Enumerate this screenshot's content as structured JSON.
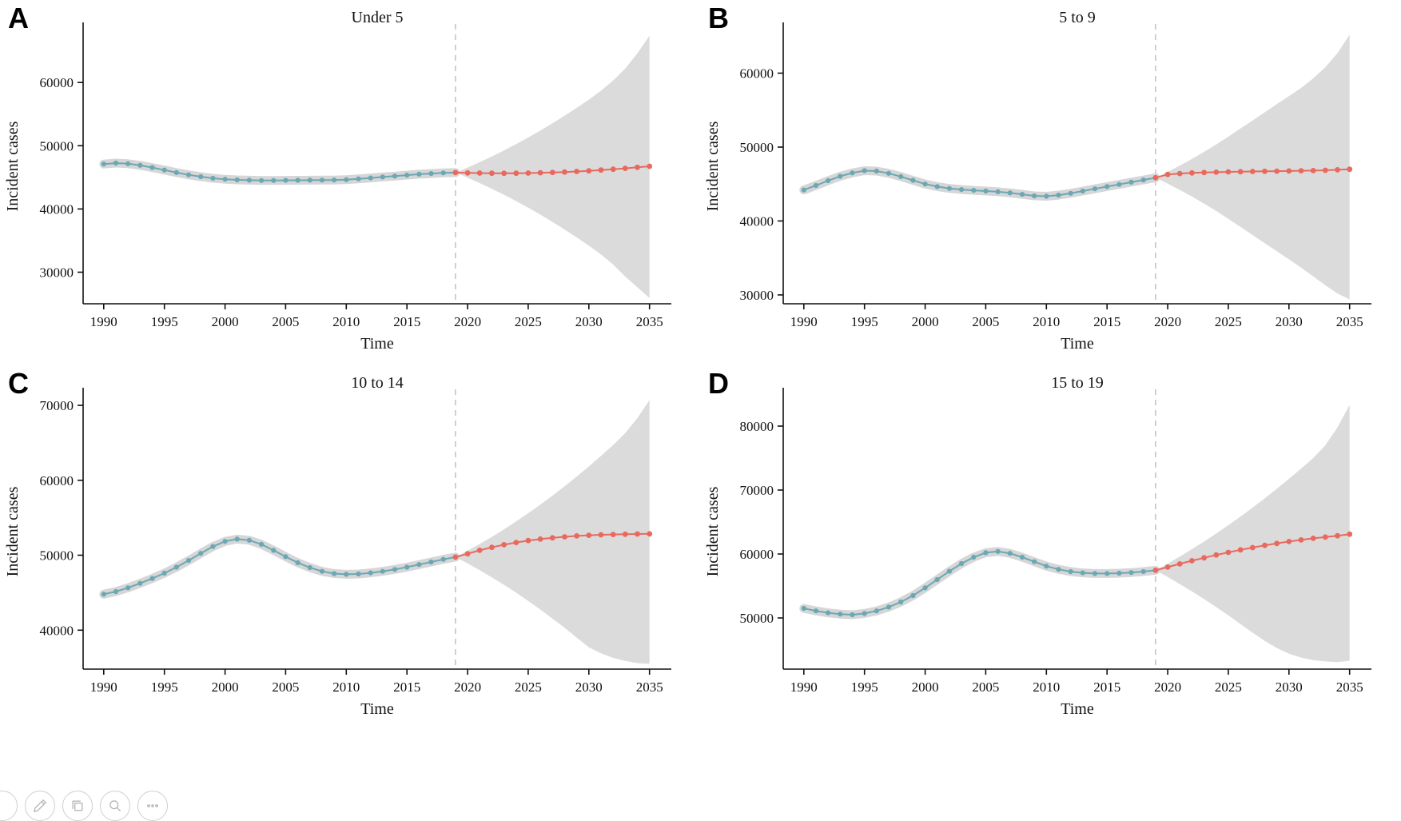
{
  "style": {
    "observed_color": "#6BA8B4",
    "forecast_color": "#E8695E",
    "ci_color": "#DBDBDB",
    "ribbon_color": "#D6D6D6",
    "dashed_color": "#C4C4C4",
    "axis_color": "#111111"
  },
  "toolbar": {
    "icons": [
      {
        "name": "cropped-button"
      },
      {
        "name": "edit-button"
      },
      {
        "name": "copy-button"
      },
      {
        "name": "zoom-button"
      },
      {
        "name": "more-button"
      }
    ]
  },
  "chart_data": [
    {
      "panel_label": "A",
      "type": "line",
      "title": "Under 5",
      "xlabel": "Time",
      "ylabel": "Incident cases",
      "xlim": [
        1988.3,
        2036.8
      ],
      "ylim": [
        25000,
        68500
      ],
      "xticks": [
        1990,
        1995,
        2000,
        2005,
        2010,
        2015,
        2020,
        2025,
        2030,
        2035
      ],
      "yticks": [
        30000,
        40000,
        50000,
        60000
      ],
      "forecast_start": 2019,
      "series": [
        {
          "name": "observed",
          "x": [
            1990,
            1991,
            1992,
            1993,
            1994,
            1995,
            1996,
            1997,
            1998,
            1999,
            2000,
            2001,
            2002,
            2003,
            2004,
            2005,
            2006,
            2007,
            2008,
            2009,
            2010,
            2011,
            2012,
            2013,
            2014,
            2015,
            2016,
            2017,
            2018,
            2019
          ],
          "values": [
            47100,
            47250,
            47150,
            46900,
            46550,
            46150,
            45750,
            45400,
            45100,
            44850,
            44700,
            44600,
            44550,
            44500,
            44500,
            44520,
            44540,
            44550,
            44560,
            44570,
            44620,
            44750,
            44900,
            45050,
            45200,
            45350,
            45500,
            45600,
            45700,
            45750
          ]
        },
        {
          "name": "forecast",
          "x": [
            2019,
            2020,
            2021,
            2022,
            2023,
            2024,
            2025,
            2026,
            2027,
            2028,
            2029,
            2030,
            2031,
            2032,
            2033,
            2034,
            2035
          ],
          "values": [
            45750,
            45700,
            45670,
            45650,
            45640,
            45650,
            45680,
            45720,
            45770,
            45840,
            45930,
            46030,
            46150,
            46280,
            46420,
            46580,
            46750
          ]
        }
      ],
      "ci": {
        "x": [
          2019,
          2020,
          2021,
          2022,
          2023,
          2024,
          2025,
          2026,
          2027,
          2028,
          2029,
          2030,
          2031,
          2032,
          2033,
          2034,
          2035
        ],
        "lower": [
          45750,
          44950,
          44100,
          43200,
          42250,
          41250,
          40200,
          39100,
          37950,
          36750,
          35500,
          34200,
          32800,
          31200,
          29300,
          27600,
          25900
        ],
        "upper": [
          45750,
          46550,
          47400,
          48300,
          49250,
          50250,
          51300,
          52400,
          53550,
          54750,
          56000,
          57300,
          58700,
          60300,
          62200,
          64600,
          67400
        ]
      }
    },
    {
      "panel_label": "B",
      "type": "line",
      "title": "5 to 9",
      "xlabel": "Time",
      "ylabel": "Incident cases",
      "xlim": [
        1988.3,
        2036.8
      ],
      "ylim": [
        28800,
        66000
      ],
      "xticks": [
        1990,
        1995,
        2000,
        2005,
        2010,
        2015,
        2020,
        2025,
        2030,
        2035
      ],
      "yticks": [
        30000,
        40000,
        50000,
        60000
      ],
      "forecast_start": 2019,
      "series": [
        {
          "name": "observed",
          "x": [
            1990,
            1991,
            1992,
            1993,
            1994,
            1995,
            1996,
            1997,
            1998,
            1999,
            2000,
            2001,
            2002,
            2003,
            2004,
            2005,
            2006,
            2007,
            2008,
            2009,
            2010,
            2011,
            2012,
            2013,
            2014,
            2015,
            2016,
            2017,
            2018,
            2019
          ],
          "values": [
            44200,
            44800,
            45450,
            46050,
            46500,
            46800,
            46750,
            46450,
            46000,
            45500,
            45000,
            44650,
            44400,
            44250,
            44150,
            44050,
            43950,
            43800,
            43600,
            43400,
            43350,
            43500,
            43750,
            44050,
            44350,
            44650,
            44950,
            45250,
            45550,
            45850
          ]
        },
        {
          "name": "forecast",
          "x": [
            2019,
            2020,
            2021,
            2022,
            2023,
            2024,
            2025,
            2026,
            2027,
            2028,
            2029,
            2030,
            2031,
            2032,
            2033,
            2034,
            2035
          ],
          "values": [
            45850,
            46300,
            46420,
            46500,
            46560,
            46600,
            46640,
            46670,
            46700,
            46720,
            46740,
            46760,
            46790,
            46820,
            46860,
            46920,
            47000
          ]
        }
      ],
      "ci": {
        "x": [
          2019,
          2020,
          2021,
          2022,
          2023,
          2024,
          2025,
          2026,
          2027,
          2028,
          2029,
          2030,
          2031,
          2032,
          2033,
          2034,
          2035
        ],
        "lower": [
          45850,
          45050,
          44200,
          43300,
          42350,
          41350,
          40300,
          39200,
          38100,
          37000,
          35900,
          34800,
          33700,
          32500,
          31300,
          30200,
          29400
        ],
        "upper": [
          45850,
          46650,
          47500,
          48400,
          49350,
          50350,
          51400,
          52500,
          53600,
          54700,
          55800,
          56900,
          58000,
          59300,
          60800,
          62700,
          65200
        ]
      }
    },
    {
      "panel_label": "C",
      "type": "line",
      "title": "10 to 14",
      "xlabel": "Time",
      "ylabel": "Incident cases",
      "xlim": [
        1988.3,
        2036.8
      ],
      "ylim": [
        34800,
        71500
      ],
      "xticks": [
        1990,
        1995,
        2000,
        2005,
        2010,
        2015,
        2020,
        2025,
        2030,
        2035
      ],
      "yticks": [
        40000,
        50000,
        60000,
        70000
      ],
      "forecast_start": 2019,
      "series": [
        {
          "name": "observed",
          "x": [
            1990,
            1991,
            1992,
            1993,
            1994,
            1995,
            1996,
            1997,
            1998,
            1999,
            2000,
            2001,
            2002,
            2003,
            2004,
            2005,
            2006,
            2007,
            2008,
            2009,
            2010,
            2011,
            2012,
            2013,
            2014,
            2015,
            2016,
            2017,
            2018,
            2019
          ],
          "values": [
            44800,
            45150,
            45650,
            46250,
            46900,
            47600,
            48400,
            49300,
            50250,
            51150,
            51850,
            52150,
            52000,
            51450,
            50650,
            49800,
            49000,
            48350,
            47850,
            47550,
            47450,
            47500,
            47650,
            47850,
            48100,
            48400,
            48750,
            49100,
            49450,
            49750
          ]
        },
        {
          "name": "forecast",
          "x": [
            2019,
            2020,
            2021,
            2022,
            2023,
            2024,
            2025,
            2026,
            2027,
            2028,
            2029,
            2030,
            2031,
            2032,
            2033,
            2034,
            2035
          ],
          "values": [
            49750,
            50200,
            50650,
            51050,
            51400,
            51700,
            51950,
            52150,
            52320,
            52460,
            52570,
            52660,
            52720,
            52770,
            52800,
            52830,
            52850
          ]
        }
      ],
      "ci": {
        "x": [
          2019,
          2020,
          2021,
          2022,
          2023,
          2024,
          2025,
          2026,
          2027,
          2028,
          2029,
          2030,
          2031,
          2032,
          2033,
          2034,
          2035
        ],
        "lower": [
          49750,
          48900,
          48000,
          47050,
          46050,
          45000,
          43900,
          42750,
          41550,
          40300,
          39000,
          37700,
          36900,
          36300,
          35900,
          35600,
          35500
        ],
        "upper": [
          49750,
          50600,
          51500,
          52450,
          53450,
          54500,
          55600,
          56750,
          57950,
          59200,
          60500,
          61850,
          63250,
          64700,
          66300,
          68300,
          70700
        ]
      }
    },
    {
      "panel_label": "D",
      "type": "line",
      "title": "15 to 19",
      "xlabel": "Time",
      "ylabel": "Incident cases",
      "xlim": [
        1988.3,
        2036.8
      ],
      "ylim": [
        42000,
        85000
      ],
      "xticks": [
        1990,
        1995,
        2000,
        2005,
        2010,
        2015,
        2020,
        2025,
        2030,
        2035
      ],
      "yticks": [
        50000,
        60000,
        70000,
        80000
      ],
      "forecast_start": 2019,
      "series": [
        {
          "name": "observed",
          "x": [
            1990,
            1991,
            1992,
            1993,
            1994,
            1995,
            1996,
            1997,
            1998,
            1999,
            2000,
            2001,
            2002,
            2003,
            2004,
            2005,
            2006,
            2007,
            2008,
            2009,
            2010,
            2011,
            2012,
            2013,
            2014,
            2015,
            2016,
            2017,
            2018,
            2019
          ],
          "values": [
            51500,
            51100,
            50800,
            50600,
            50500,
            50700,
            51100,
            51700,
            52500,
            53500,
            54700,
            56000,
            57300,
            58500,
            59500,
            60200,
            60400,
            60100,
            59500,
            58800,
            58100,
            57600,
            57250,
            57050,
            56950,
            56950,
            57000,
            57100,
            57250,
            57450
          ]
        },
        {
          "name": "forecast",
          "x": [
            2019,
            2020,
            2021,
            2022,
            2023,
            2024,
            2025,
            2026,
            2027,
            2028,
            2029,
            2030,
            2031,
            2032,
            2033,
            2034,
            2035
          ],
          "values": [
            57450,
            57950,
            58450,
            58950,
            59400,
            59850,
            60250,
            60650,
            61000,
            61350,
            61650,
            61950,
            62200,
            62450,
            62650,
            62850,
            63100
          ]
        }
      ],
      "ci": {
        "x": [
          2019,
          2020,
          2021,
          2022,
          2023,
          2024,
          2025,
          2026,
          2027,
          2028,
          2029,
          2030,
          2031,
          2032,
          2033,
          2034,
          2035
        ],
        "lower": [
          57450,
          56400,
          55300,
          54150,
          52950,
          51700,
          50400,
          49050,
          47700,
          46400,
          45300,
          44400,
          43800,
          43400,
          43200,
          43100,
          43300
        ],
        "upper": [
          57450,
          58500,
          59600,
          60750,
          61950,
          63200,
          64500,
          65850,
          67250,
          68700,
          70200,
          71750,
          73350,
          75000,
          77000,
          79800,
          83300
        ]
      }
    }
  ]
}
